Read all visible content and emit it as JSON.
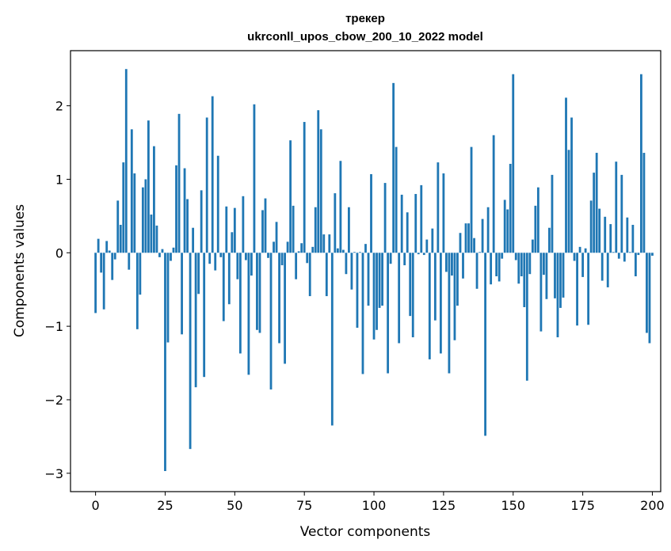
{
  "chart_data": {
    "type": "bar",
    "title_line1": "трекер",
    "title_line2": "ukrconll_upos_cbow_200_10_2022 model",
    "xlabel": "Vector components",
    "ylabel": "Components values",
    "xlim": [
      -9,
      203
    ],
    "ylim": [
      -3.25,
      2.75
    ],
    "x_ticks": [
      0,
      25,
      50,
      75,
      100,
      125,
      150,
      175,
      200
    ],
    "y_ticks": [
      -3,
      -2,
      -1,
      0,
      1,
      2
    ],
    "x_tick_labels": [
      "0",
      "25",
      "50",
      "75",
      "100",
      "125",
      "150",
      "175",
      "200"
    ],
    "y_tick_labels": [
      "−3",
      "−2",
      "−1",
      "0",
      "1",
      "2"
    ],
    "bar_color": "#1f77b4",
    "values": [
      -0.82,
      0.19,
      -0.27,
      -0.77,
      0.16,
      0.03,
      -0.37,
      -0.09,
      0.71,
      0.38,
      1.23,
      2.5,
      -0.23,
      1.68,
      1.08,
      -1.04,
      -0.57,
      0.89,
      1.0,
      1.8,
      0.52,
      1.45,
      0.37,
      -0.06,
      0.05,
      -2.97,
      -1.22,
      -0.11,
      0.07,
      1.19,
      1.89,
      -1.11,
      1.15,
      0.73,
      -2.67,
      0.34,
      -1.83,
      -0.56,
      0.85,
      -1.69,
      1.84,
      -0.15,
      2.13,
      -0.24,
      1.32,
      -0.06,
      -0.93,
      0.63,
      -0.7,
      0.28,
      0.61,
      -0.36,
      -1.37,
      0.77,
      -0.1,
      -1.66,
      -0.31,
      2.02,
      -1.05,
      -1.09,
      0.58,
      0.74,
      -0.07,
      -1.86,
      0.15,
      0.42,
      -1.23,
      -0.17,
      -1.51,
      0.15,
      1.53,
      0.64,
      -0.36,
      0.02,
      0.13,
      1.78,
      -0.14,
      -0.59,
      0.08,
      0.62,
      1.94,
      1.68,
      0.25,
      -0.59,
      0.25,
      -2.35,
      0.81,
      0.06,
      1.25,
      0.04,
      -0.29,
      0.62,
      -0.5,
      0.01,
      -1.02,
      0.01,
      -1.65,
      0.12,
      -0.72,
      1.07,
      -1.18,
      -1.05,
      -0.75,
      -0.72,
      0.95,
      -1.64,
      -0.15,
      2.31,
      1.44,
      -1.23,
      0.79,
      -0.17,
      0.55,
      -0.86,
      -1.15,
      0.8,
      -0.02,
      0.92,
      -0.03,
      0.18,
      -1.45,
      0.33,
      -0.92,
      1.23,
      -1.37,
      1.08,
      -0.26,
      -1.64,
      -0.31,
      -1.19,
      -0.72,
      0.27,
      -0.35,
      0.4,
      0.4,
      1.44,
      0.2,
      -0.49,
      0.01,
      0.46,
      -2.49,
      0.62,
      -0.43,
      1.6,
      -0.32,
      -0.39,
      -0.08,
      0.72,
      0.59,
      1.21,
      2.43,
      -0.1,
      -0.42,
      -0.32,
      -0.74,
      -1.74,
      -0.29,
      0.18,
      0.64,
      0.89,
      -1.07,
      -0.3,
      -0.63,
      0.34,
      1.06,
      -0.62,
      -1.15,
      -0.75,
      -0.61,
      2.11,
      1.4,
      1.84,
      -0.11,
      -0.99,
      0.08,
      -0.33,
      0.06,
      -0.98,
      0.71,
      1.09,
      1.36,
      0.6,
      -0.38,
      0.49,
      -0.47,
      0.39,
      0.01,
      1.24,
      -0.08,
      1.06,
      -0.12,
      0.48,
      0.01,
      0.38,
      -0.32,
      -0.03,
      2.43,
      1.36,
      -1.09,
      -1.23,
      -0.04
    ]
  }
}
